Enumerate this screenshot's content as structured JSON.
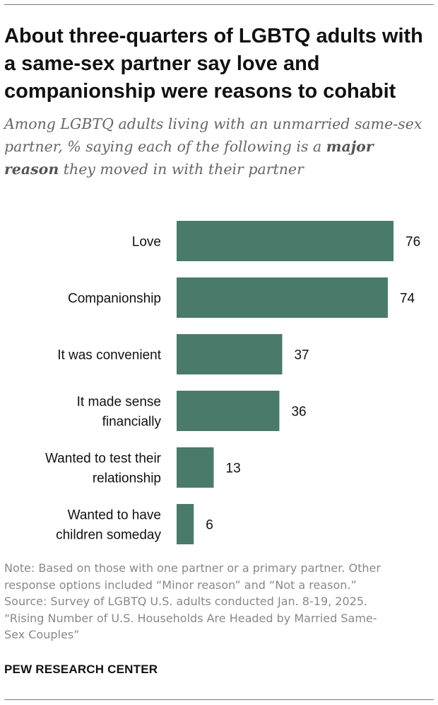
{
  "header": {
    "title": "About three-quarters of LGBTQ adults with a same-sex partner say love and companionship were reasons to cohabit",
    "subtitle_pre": "Among LGBTQ adults living with an unmarried same-sex partner, % saying each of the following is a ",
    "subtitle_bold": "major reason",
    "subtitle_post": " they moved in with their partner"
  },
  "colors": {
    "bar": "#4a7a6a",
    "text": "#111111",
    "note": "#888888"
  },
  "chart_data": {
    "type": "bar",
    "orientation": "horizontal",
    "categories": [
      "Love",
      "Companionship",
      "It was convenient",
      "It made sense financially",
      "Wanted to test their relationship",
      "Wanted to have children someday"
    ],
    "category_lines": [
      [
        "Love"
      ],
      [
        "Companionship"
      ],
      [
        "It was convenient"
      ],
      [
        "It made sense",
        "financially"
      ],
      [
        "Wanted to test their",
        "relationship"
      ],
      [
        "Wanted to have",
        "children someday"
      ]
    ],
    "values": [
      76,
      74,
      37,
      36,
      13,
      6
    ],
    "xlim": [
      0,
      100
    ],
    "grid": false,
    "legend": "none"
  },
  "footer": {
    "note_lines": [
      "Note: Based on those with one partner or a primary partner. Other",
      "response options included “Minor reason” and “Not a reason.”",
      "Source: Survey of LGBTQ U.S. adults conducted Jan. 8-19, 2025.",
      "“Rising Number of U.S. Households Are Headed by Married Same-",
      "Sex Couples”"
    ],
    "brand": "PEW RESEARCH CENTER"
  }
}
